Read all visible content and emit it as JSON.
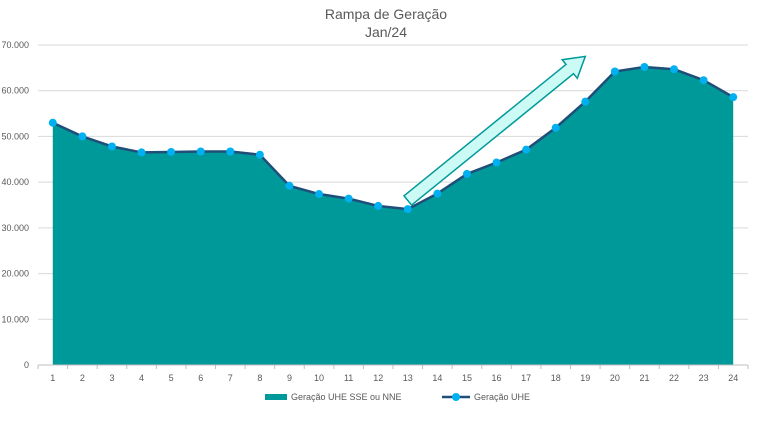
{
  "chart_data": {
    "type": "area",
    "title": "Rampa de Geração",
    "subtitle": "Jan/24",
    "x": [
      "1",
      "2",
      "3",
      "4",
      "5",
      "6",
      "7",
      "8",
      "9",
      "10",
      "11",
      "12",
      "13",
      "14",
      "15",
      "16",
      "17",
      "18",
      "19",
      "20",
      "21",
      "22",
      "23",
      "24"
    ],
    "series": [
      {
        "name": "Geração UHE SSE ou NNE",
        "kind": "area",
        "color": "#009999",
        "values": [
          53000,
          50000,
          47800,
          46500,
          46600,
          46700,
          46700,
          46000,
          39200,
          37400,
          36400,
          34800,
          34100,
          37500,
          41800,
          44300,
          47100,
          51900,
          57600,
          64200,
          65200,
          64700,
          62300,
          58600
        ]
      },
      {
        "name": "Geração UHE",
        "kind": "line",
        "color": "#1f4e79",
        "marker_color": "#00b0f0",
        "values": [
          53000,
          50000,
          47800,
          46500,
          46600,
          46700,
          46700,
          46000,
          39200,
          37400,
          36400,
          34800,
          34100,
          37500,
          41800,
          44300,
          47100,
          51900,
          57600,
          64200,
          65200,
          64700,
          62300,
          58600
        ]
      }
    ],
    "yticks": [
      "0",
      "10.000",
      "20.000",
      "30.000",
      "40.000",
      "50.000",
      "60.000",
      "70.000"
    ],
    "ylim": [
      0,
      70000
    ],
    "grid": true,
    "legend": "bottom",
    "annotation": {
      "type": "arrow",
      "from_x": 13,
      "from_y": 36000,
      "to_x": 19,
      "to_y": 67500,
      "fill": "#ccfaf5",
      "stroke": "#009999"
    }
  }
}
